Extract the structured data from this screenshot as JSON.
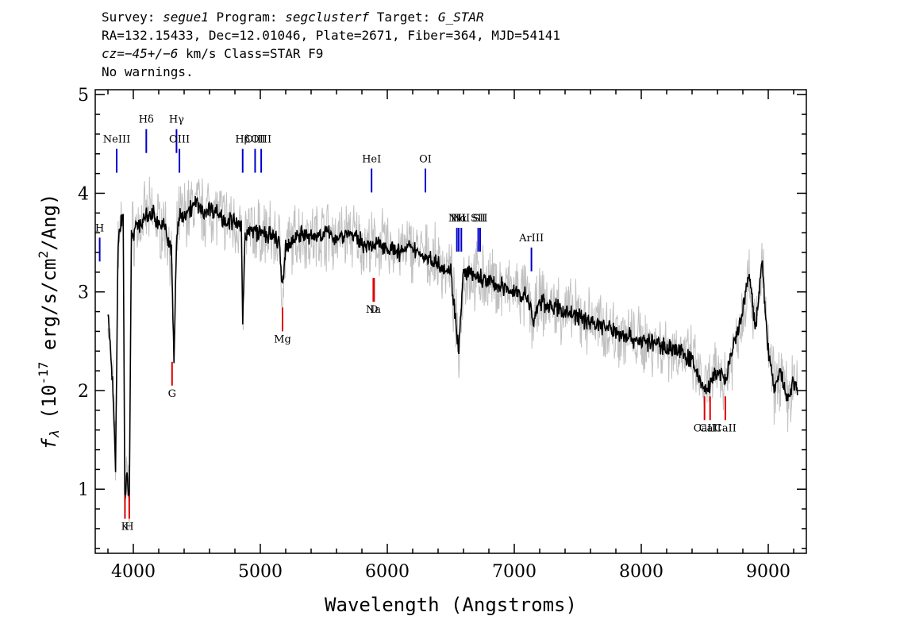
{
  "header": {
    "line1": {
      "survey_label": "Survey: ",
      "survey": "segue1",
      "program_label": " Program: ",
      "program": "segclusterf",
      "target_label": " Target: ",
      "target": "G_STAR"
    },
    "line2": "RA=132.15433, Dec=12.01046, Plate=2671, Fiber=364, MJD=54141",
    "line3": {
      "cz_label": "cz=",
      "cz": "−45+/−6",
      "rest": " km/s Class=STAR F9"
    },
    "line4": "No warnings."
  },
  "chart_data": {
    "type": "line",
    "title": "",
    "xlabel": "Wavelength (Angstroms)",
    "ylabel": "f_λ (10^-17 erg/s/cm^2/Ang)",
    "xlim": [
      3700,
      9300
    ],
    "ylim": [
      0.35,
      5.05
    ],
    "x_ticks": [
      4000,
      5000,
      6000,
      7000,
      8000,
      9000
    ],
    "y_ticks": [
      1,
      2,
      3,
      4,
      5
    ],
    "grid": false,
    "colors": {
      "flux": "#000000",
      "error_band": "#c0c0c0",
      "emission_lines": "#0000cc",
      "absorption_lines": "#dd0000"
    },
    "series": [
      {
        "name": "",
        "x": [
          3800,
          3840,
          3860,
          3880,
          3900,
          3920,
          3933,
          3950,
          3968,
          3985,
          4000,
          4050,
          4100,
          4150,
          4200,
          4250,
          4300,
          4320,
          4340,
          4360,
          4400,
          4450,
          4500,
          4550,
          4600,
          4650,
          4700,
          4750,
          4800,
          4850,
          4861,
          4880,
          4950,
          5000,
          5050,
          5100,
          5150,
          5175,
          5200,
          5250,
          5300,
          5400,
          5500,
          5600,
          5700,
          5800,
          5893,
          5950,
          6000,
          6100,
          6200,
          6300,
          6400,
          6500,
          6563,
          6600,
          6700,
          6800,
          6900,
          7000,
          7100,
          7150,
          7200,
          7300,
          7400,
          7500,
          7600,
          7700,
          7800,
          7900,
          8000,
          8100,
          8200,
          8300,
          8400,
          8498,
          8542,
          8600,
          8662,
          8700,
          8800,
          8850,
          8900,
          8950,
          9000,
          9050,
          9100,
          9150,
          9200,
          9230
        ],
        "y": [
          2.8,
          2.0,
          1.2,
          3.5,
          3.7,
          3.8,
          0.85,
          1.2,
          0.85,
          3.6,
          3.6,
          3.7,
          3.75,
          3.8,
          3.7,
          3.65,
          3.4,
          2.3,
          3.5,
          3.75,
          3.8,
          3.85,
          3.9,
          3.8,
          3.85,
          3.82,
          3.75,
          3.72,
          3.7,
          3.65,
          2.7,
          3.6,
          3.62,
          3.6,
          3.58,
          3.55,
          3.5,
          3.0,
          3.45,
          3.5,
          3.6,
          3.55,
          3.6,
          3.55,
          3.6,
          3.5,
          3.45,
          3.5,
          3.45,
          3.4,
          3.45,
          3.35,
          3.3,
          3.2,
          2.4,
          3.2,
          3.15,
          3.1,
          3.05,
          3.0,
          2.95,
          2.7,
          2.9,
          2.85,
          2.8,
          2.75,
          2.7,
          2.65,
          2.6,
          2.55,
          2.5,
          2.48,
          2.45,
          2.4,
          2.3,
          2.0,
          2.05,
          2.2,
          2.1,
          2.3,
          2.8,
          3.2,
          2.6,
          3.3,
          2.4,
          2.0,
          2.2,
          1.9,
          2.1,
          2.0
        ]
      }
    ],
    "line_markers": [
      {
        "label": "NeIII",
        "wavelength": 3869,
        "kind": "emission",
        "flux": 4.45
      },
      {
        "label": "Hδ",
        "wavelength": 4102,
        "kind": "emission",
        "flux": 4.65
      },
      {
        "label": "Hγ",
        "wavelength": 4340,
        "kind": "emission",
        "flux": 4.65
      },
      {
        "label": "OIII",
        "wavelength": 4363,
        "kind": "emission",
        "flux": 4.45
      },
      {
        "label": "Hβ",
        "wavelength": 4861,
        "kind": "emission",
        "flux": 4.45
      },
      {
        "label": "OIII",
        "wavelength": 4959,
        "kind": "emission",
        "flux": 4.45
      },
      {
        "label": "OIII",
        "wavelength": 5007,
        "kind": "emission",
        "flux": 4.45
      },
      {
        "label": "HeI",
        "wavelength": 5876,
        "kind": "emission",
        "flux": 4.25
      },
      {
        "label": "OI",
        "wavelength": 6300,
        "kind": "emission",
        "flux": 4.25
      },
      {
        "label": "NII",
        "wavelength": 6548,
        "kind": "emission",
        "flux": 3.65
      },
      {
        "label": "Hα",
        "wavelength": 6563,
        "kind": "emission",
        "flux": 3.65
      },
      {
        "label": "NII",
        "wavelength": 6583,
        "kind": "emission",
        "flux": 3.65
      },
      {
        "label": "SII",
        "wavelength": 6716,
        "kind": "emission",
        "flux": 3.65
      },
      {
        "label": "SII",
        "wavelength": 6731,
        "kind": "emission",
        "flux": 3.65
      },
      {
        "label": "ArIII",
        "wavelength": 7135,
        "kind": "emission",
        "flux": 3.45
      },
      {
        "label": "H",
        "wavelength": 3735,
        "kind": "emission",
        "flux": 3.55
      },
      {
        "label": "K",
        "wavelength": 3934,
        "kind": "absorption",
        "flux": 0.7
      },
      {
        "label": "H",
        "wavelength": 3968,
        "kind": "absorption",
        "flux": 0.7
      },
      {
        "label": "G",
        "wavelength": 4305,
        "kind": "absorption",
        "flux": 2.05
      },
      {
        "label": "Mg",
        "wavelength": 5175,
        "kind": "absorption",
        "flux": 2.6
      },
      {
        "label": "Na",
        "wavelength": 5890,
        "kind": "absorption",
        "flux": 2.9
      },
      {
        "label": "D",
        "wavelength": 5896,
        "kind": "absorption",
        "flux": 2.9
      },
      {
        "label": "CaII",
        "wavelength": 8498,
        "kind": "absorption",
        "flux": 1.7
      },
      {
        "label": "CaII",
        "wavelength": 8542,
        "kind": "absorption",
        "flux": 1.7
      },
      {
        "label": "CaII",
        "wavelength": 8662,
        "kind": "absorption",
        "flux": 1.7
      }
    ]
  }
}
